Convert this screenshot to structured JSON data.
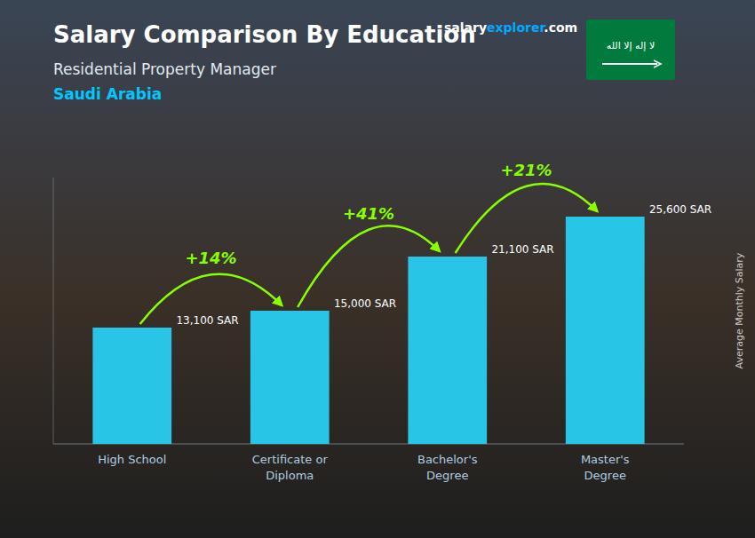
{
  "chart_data": {
    "type": "bar",
    "title": "Salary Comparison By Education",
    "subtitle": [
      "Residential Property Manager",
      "Saudi Arabia"
    ],
    "ylabel": "Average Monthly Salary",
    "categories": [
      "High School",
      "Certificate or\nDiploma",
      "Bachelor's\nDegree",
      "Master's\nDegree"
    ],
    "values": [
      13100,
      15000,
      21100,
      25600
    ],
    "value_labels": [
      "13,100 SAR",
      "15,000 SAR",
      "21,100 SAR",
      "25,600 SAR"
    ],
    "data_labels": true,
    "color": "#29c5e6",
    "ylim": [
      0,
      30000
    ],
    "tick_labels": "x",
    "grid": false,
    "annotations": [
      "+14%",
      "+41%",
      "+21%"
    ],
    "watermark": [
      "salary",
      "explorer",
      ".com"
    ],
    "flag_text": "لا إله إلا الله"
  }
}
